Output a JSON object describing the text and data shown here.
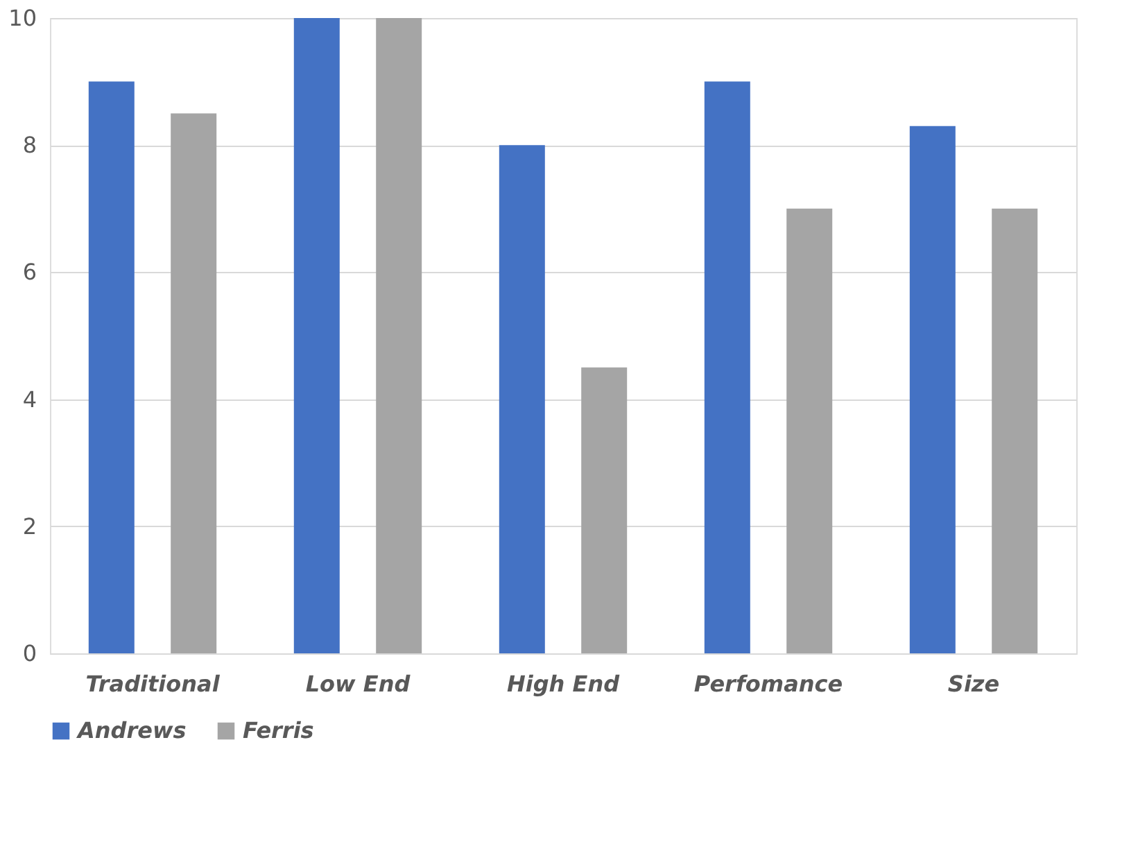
{
  "chart_data": {
    "type": "bar",
    "categories": [
      "Traditional",
      "Low End",
      "High End",
      "Perfomance",
      "Size"
    ],
    "series": [
      {
        "name": "Andrews",
        "color": "#4472c4",
        "values": [
          9,
          10,
          8,
          9,
          8.3
        ]
      },
      {
        "name": "Ferris",
        "color": "#a5a5a5",
        "values": [
          8.5,
          10,
          4.5,
          7,
          7
        ]
      }
    ],
    "ylim": [
      0,
      10
    ],
    "yticks": [
      0,
      2,
      4,
      6,
      8,
      10
    ],
    "grid": "y",
    "legend": "bottom"
  }
}
